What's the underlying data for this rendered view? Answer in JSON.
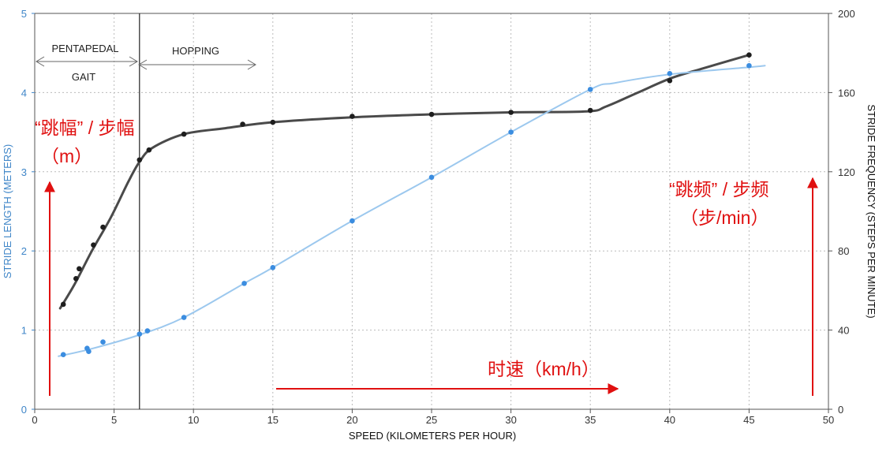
{
  "chart_data": {
    "type": "line",
    "xlabel": "SPEED (KILOMETERS PER HOUR)",
    "ylabel_left": "STRIDE LENGTH (METERS)",
    "ylabel_right": "STRIDE FREQUENCY (STEPS PER MINUTE)",
    "xlim": [
      0,
      50
    ],
    "ylim_left": [
      0,
      5
    ],
    "ylim_right": [
      0,
      200
    ],
    "x_ticks": [
      "0",
      "5",
      "10",
      "15",
      "20",
      "25",
      "30",
      "35",
      "40",
      "45",
      "50"
    ],
    "y_left_ticks": [
      "0",
      "1",
      "2",
      "3",
      "4",
      "5"
    ],
    "y_right_ticks": [
      "0",
      "40",
      "80",
      "120",
      "160",
      "200"
    ],
    "grid": true,
    "gait": {
      "boundary_speed": 6.6,
      "pentapedal": "PENTAPEDAL",
      "gait": "GAIT",
      "hopping": "HOPPING"
    },
    "series": [
      {
        "axis": "right",
        "color": "#444444",
        "points": [
          [
            1.8,
            53
          ],
          [
            2.6,
            66
          ],
          [
            2.8,
            71
          ],
          [
            3.7,
            83
          ],
          [
            4.3,
            92
          ],
          [
            6.6,
            126
          ],
          [
            7.2,
            131
          ],
          [
            9.4,
            139
          ],
          [
            13.1,
            144
          ],
          [
            15,
            145
          ],
          [
            20,
            148
          ],
          [
            25,
            149
          ],
          [
            30,
            150
          ],
          [
            35,
            151
          ],
          [
            40,
            166
          ],
          [
            45,
            179
          ]
        ],
        "curve": [
          [
            1.6,
            51
          ],
          [
            2.5,
            63
          ],
          [
            3.6,
            80
          ],
          [
            4.8,
            97
          ],
          [
            5.9,
            115
          ],
          [
            6.6,
            125
          ],
          [
            7.4,
            132
          ],
          [
            9.4,
            139
          ],
          [
            12,
            142
          ],
          [
            15,
            145
          ],
          [
            20,
            147.5
          ],
          [
            25,
            149
          ],
          [
            30,
            150
          ],
          [
            34.8,
            150.5
          ],
          [
            36,
            153
          ],
          [
            38,
            160
          ],
          [
            40,
            167
          ],
          [
            42,
            172
          ],
          [
            45,
            179
          ]
        ]
      },
      {
        "axis": "left",
        "color": "#3b8de0",
        "points": [
          [
            1.8,
            0.69
          ],
          [
            3.3,
            0.77
          ],
          [
            3.4,
            0.73
          ],
          [
            4.3,
            0.85
          ],
          [
            6.6,
            0.95
          ],
          [
            7.1,
            0.99
          ],
          [
            9.4,
            1.16
          ],
          [
            13.2,
            1.59
          ],
          [
            15,
            1.79
          ],
          [
            20,
            2.38
          ],
          [
            25,
            2.93
          ],
          [
            30,
            3.5
          ],
          [
            35,
            4.04
          ],
          [
            40,
            4.24
          ],
          [
            45,
            4.34
          ]
        ],
        "curve": [
          [
            1.5,
            0.67
          ],
          [
            3.5,
            0.76
          ],
          [
            6.6,
            0.94
          ],
          [
            9.4,
            1.16
          ],
          [
            13.2,
            1.59
          ],
          [
            15,
            1.79
          ],
          [
            20,
            2.38
          ],
          [
            25,
            2.93
          ],
          [
            30,
            3.5
          ],
          [
            35,
            4.04
          ],
          [
            36.5,
            4.12
          ],
          [
            40,
            4.23
          ],
          [
            45,
            4.32
          ],
          [
            46,
            4.34
          ]
        ]
      }
    ],
    "annotations": {
      "left_label": "“跳幅” / 步幅",
      "left_unit": "（m）",
      "right_label": "“跳频” / 步频",
      "right_unit": "（步/min）",
      "x_label": "时速（km/h）",
      "arrow_color": "#e01010"
    }
  }
}
